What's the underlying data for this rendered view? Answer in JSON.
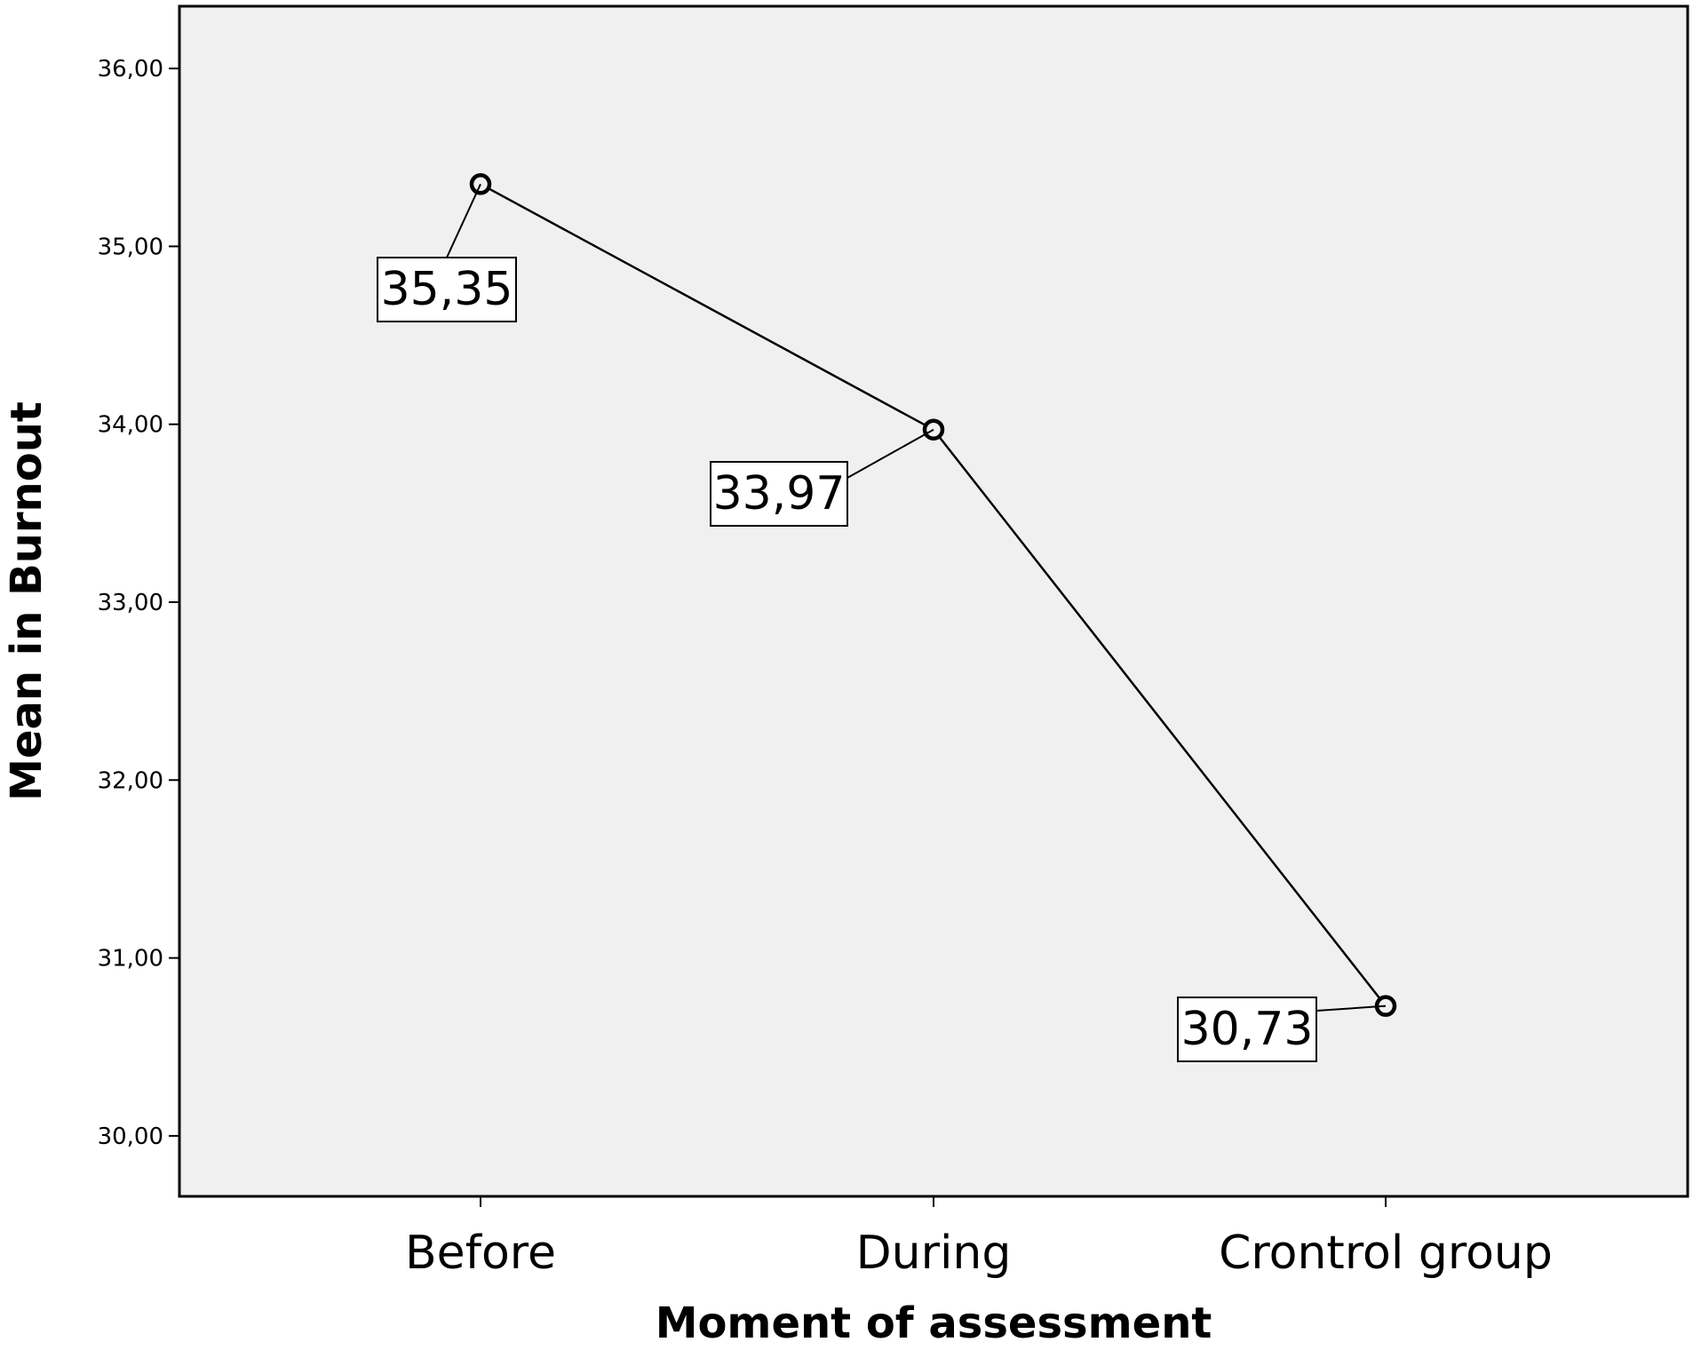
{
  "chart_data": {
    "type": "line",
    "title": "",
    "xlabel": "Moment of assessment",
    "ylabel": "Mean in Burnout",
    "categories": [
      "Before",
      "During",
      "Crontrol group"
    ],
    "series": [
      {
        "values": [
          35.35,
          33.97,
          30.73
        ],
        "data_labels": [
          "35,35",
          "33,97",
          "30,73"
        ]
      }
    ],
    "ylim": [
      29.66,
      36.35
    ],
    "yticks": [
      30,
      31,
      32,
      33,
      34,
      35,
      36
    ],
    "ytick_labels": [
      "30,00",
      "31,00",
      "32,00",
      "33,00",
      "34,00",
      "35,00",
      "36,00"
    ],
    "grid": false,
    "legend": "none",
    "marker": "open-circle",
    "colors": {
      "plot_background": "#f0f0f0",
      "line": "#000000",
      "frame": "#000000",
      "label_box_fill": "#ffffff",
      "page_background": "#ffffff"
    }
  }
}
